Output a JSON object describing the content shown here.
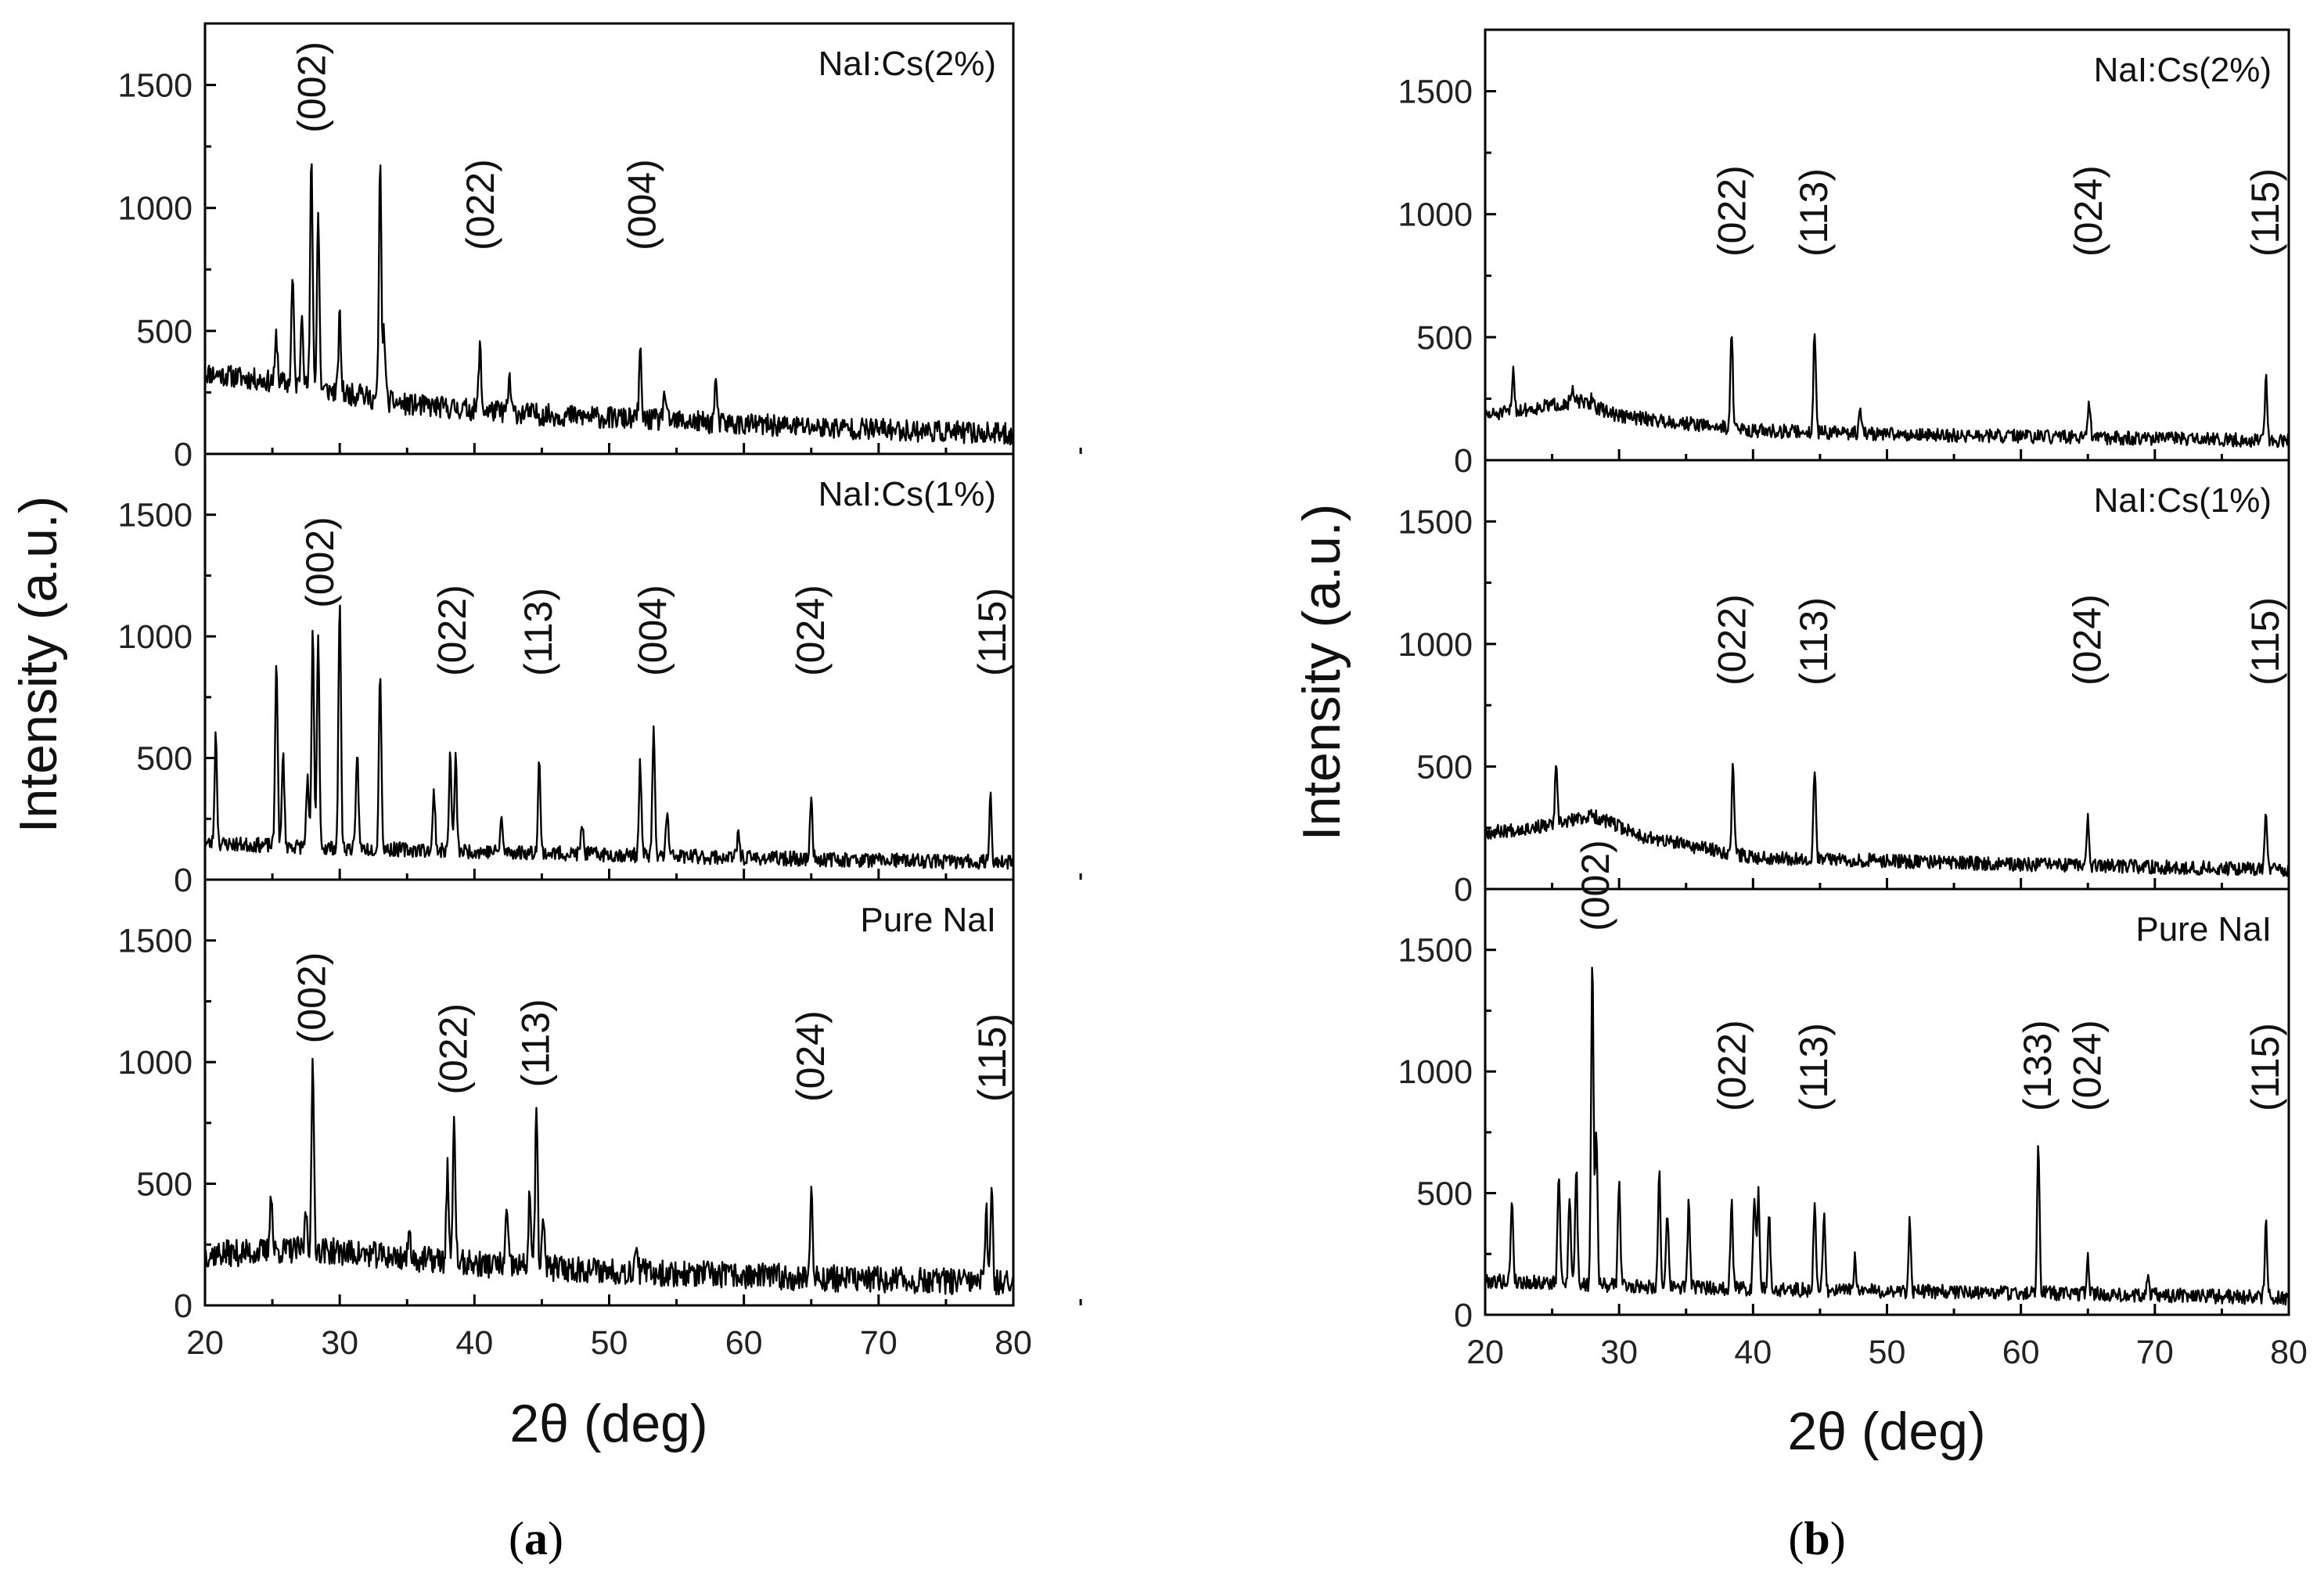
{
  "chart_data": [
    {
      "type": "line",
      "caption_letter": "a",
      "xlabel": "2θ (deg)",
      "ylabel": "Intensity (a.u.)",
      "xlim": [
        20,
        80
      ],
      "ylim": [
        0,
        1750
      ],
      "x_ticks": [
        20,
        30,
        40,
        50,
        60,
        70,
        80
      ],
      "y_ticks": [
        0,
        500,
        1000,
        1500
      ],
      "panels": [
        {
          "sample": "NaI:Cs(2%)",
          "baseline": [
            [
              20,
              330
            ],
            [
              27,
              280
            ],
            [
              35,
              200
            ],
            [
              45,
              160
            ],
            [
              60,
              120
            ],
            [
              80,
              80
            ]
          ],
          "noise": 45,
          "seed": 11,
          "peaks": [
            [
              25.3,
              480
            ],
            [
              26.5,
              720
            ],
            [
              27.2,
              600
            ],
            [
              27.9,
              1210
            ],
            [
              28.4,
              980
            ],
            [
              30.0,
              560
            ],
            [
              31.5,
              300
            ],
            [
              33.0,
              1170
            ],
            [
              33.3,
              500
            ],
            [
              40.4,
              440
            ],
            [
              42.6,
              310
            ],
            [
              52.3,
              410
            ],
            [
              54.1,
              260
            ],
            [
              57.9,
              300
            ]
          ],
          "hkl_labels": [
            {
              "x": 28.0,
              "text": "(002)"
            },
            {
              "x": 40.5,
              "text": "(022)"
            },
            {
              "x": 52.5,
              "text": "(004)"
            }
          ]
        },
        {
          "sample": "NaI:Cs(1%)",
          "baseline": [
            [
              20,
              150
            ],
            [
              30,
              130
            ],
            [
              45,
              110
            ],
            [
              60,
              90
            ],
            [
              80,
              70
            ]
          ],
          "noise": 30,
          "seed": 23,
          "peaks": [
            [
              20.8,
              600
            ],
            [
              25.3,
              920
            ],
            [
              25.8,
              520
            ],
            [
              27.6,
              420
            ],
            [
              28.0,
              1020
            ],
            [
              28.4,
              990
            ],
            [
              30.0,
              1160
            ],
            [
              31.3,
              530
            ],
            [
              33.0,
              870
            ],
            [
              37.0,
              360
            ],
            [
              38.2,
              510
            ],
            [
              38.6,
              500
            ],
            [
              42.0,
              250
            ],
            [
              44.8,
              490
            ],
            [
              48.0,
              230
            ],
            [
              52.3,
              480
            ],
            [
              53.3,
              620
            ],
            [
              54.3,
              280
            ],
            [
              59.6,
              200
            ],
            [
              65.0,
              340
            ],
            [
              78.3,
              340
            ]
          ],
          "hkl_labels": [
            {
              "x": 28.6,
              "text": "(002)"
            },
            {
              "x": 38.4,
              "text": "(022)"
            },
            {
              "x": 44.8,
              "text": "(113)"
            },
            {
              "x": 53.3,
              "text": "(004)"
            },
            {
              "x": 65.0,
              "text": "(024)"
            },
            {
              "x": 78.5,
              "text": "(115)"
            }
          ]
        },
        {
          "sample": "Pure NaI",
          "baseline": [
            [
              20,
              210
            ],
            [
              28,
              230
            ],
            [
              40,
              170
            ],
            [
              55,
              130
            ],
            [
              80,
              90
            ]
          ],
          "noise": 55,
          "seed": 37,
          "peaks": [
            [
              24.9,
              480
            ],
            [
              27.5,
              400
            ],
            [
              28.0,
              980
            ],
            [
              35.2,
              300
            ],
            [
              38.0,
              570
            ],
            [
              38.5,
              770
            ],
            [
              42.4,
              390
            ],
            [
              44.1,
              470
            ],
            [
              44.6,
              800
            ],
            [
              45.1,
              350
            ],
            [
              52.0,
              280
            ],
            [
              65.0,
              480
            ],
            [
              78.0,
              380
            ],
            [
              78.4,
              500
            ]
          ],
          "hkl_labels": [
            {
              "x": 28.0,
              "text": "(002)"
            },
            {
              "x": 38.5,
              "text": "(022)"
            },
            {
              "x": 44.6,
              "text": "(113)"
            },
            {
              "x": 65.0,
              "text": "(024)"
            },
            {
              "x": 78.5,
              "text": "(115)"
            }
          ]
        }
      ]
    },
    {
      "type": "line",
      "caption_letter": "b",
      "xlabel": "2θ (deg)",
      "ylabel": "Intensity (a.u.)",
      "xlim": [
        20,
        80
      ],
      "ylim": [
        0,
        1750
      ],
      "x_ticks": [
        20,
        30,
        40,
        50,
        60,
        70,
        80
      ],
      "y_ticks": [
        0,
        500,
        1000,
        1500
      ],
      "panels": [
        {
          "sample": "NaI:Cs(2%)",
          "baseline": [
            [
              20,
              180
            ],
            [
              27,
              240
            ],
            [
              30,
              180
            ],
            [
              40,
              120
            ],
            [
              55,
              100
            ],
            [
              80,
              80
            ]
          ],
          "noise": 28,
          "seed": 51,
          "peaks": [
            [
              22.1,
              370
            ],
            [
              26.5,
              280
            ],
            [
              28.0,
              260
            ],
            [
              38.4,
              530
            ],
            [
              44.6,
              530
            ],
            [
              48.0,
              220
            ],
            [
              65.1,
              230
            ],
            [
              78.3,
              330
            ]
          ],
          "hkl_labels": [
            {
              "x": 38.5,
              "text": "(022)"
            },
            {
              "x": 44.6,
              "text": "(113)"
            },
            {
              "x": 65.1,
              "text": "(024)"
            },
            {
              "x": 78.3,
              "text": "(115)"
            }
          ]
        },
        {
          "sample": "NaI:Cs(1%)",
          "baseline": [
            [
              20,
              230
            ],
            [
              25,
              260
            ],
            [
              28,
              300
            ],
            [
              32,
              210
            ],
            [
              40,
              130
            ],
            [
              60,
              100
            ],
            [
              80,
              80
            ]
          ],
          "noise": 28,
          "seed": 67,
          "peaks": [
            [
              25.3,
              490
            ],
            [
              38.5,
              510
            ],
            [
              44.6,
              490
            ],
            [
              65.0,
              290
            ],
            [
              78.3,
              320
            ]
          ],
          "hkl_labels": [
            {
              "x": 38.5,
              "text": "(022)"
            },
            {
              "x": 44.6,
              "text": "(113)"
            },
            {
              "x": 65.0,
              "text": "(024)"
            },
            {
              "x": 78.3,
              "text": "(115)"
            }
          ]
        },
        {
          "sample": "Pure NaI",
          "baseline": [
            [
              20,
              140
            ],
            [
              30,
              120
            ],
            [
              45,
              100
            ],
            [
              60,
              90
            ],
            [
              80,
              70
            ]
          ],
          "noise": 30,
          "seed": 79,
          "peaks": [
            [
              22.0,
              480
            ],
            [
              25.5,
              590
            ],
            [
              26.3,
              500
            ],
            [
              26.8,
              600
            ],
            [
              28.0,
              1480
            ],
            [
              28.3,
              750
            ],
            [
              30.0,
              560
            ],
            [
              33.0,
              590
            ],
            [
              33.6,
              400
            ],
            [
              35.2,
              460
            ],
            [
              38.4,
              480
            ],
            [
              40.1,
              500
            ],
            [
              40.4,
              520
            ],
            [
              41.2,
              400
            ],
            [
              44.6,
              470
            ],
            [
              45.3,
              420
            ],
            [
              47.6,
              230
            ],
            [
              51.7,
              390
            ],
            [
              61.3,
              700
            ],
            [
              65.0,
              230
            ],
            [
              69.5,
              150
            ],
            [
              78.3,
              370
            ]
          ],
          "hkl_labels": [
            {
              "x": 28.3,
              "text": "(002)"
            },
            {
              "x": 38.5,
              "text": "(022)"
            },
            {
              "x": 44.6,
              "text": "(113)"
            },
            {
              "x": 61.3,
              "text": "(133)"
            },
            {
              "x": 65.0,
              "text": "(024)"
            },
            {
              "x": 78.3,
              "text": "(115)"
            }
          ]
        }
      ]
    }
  ]
}
